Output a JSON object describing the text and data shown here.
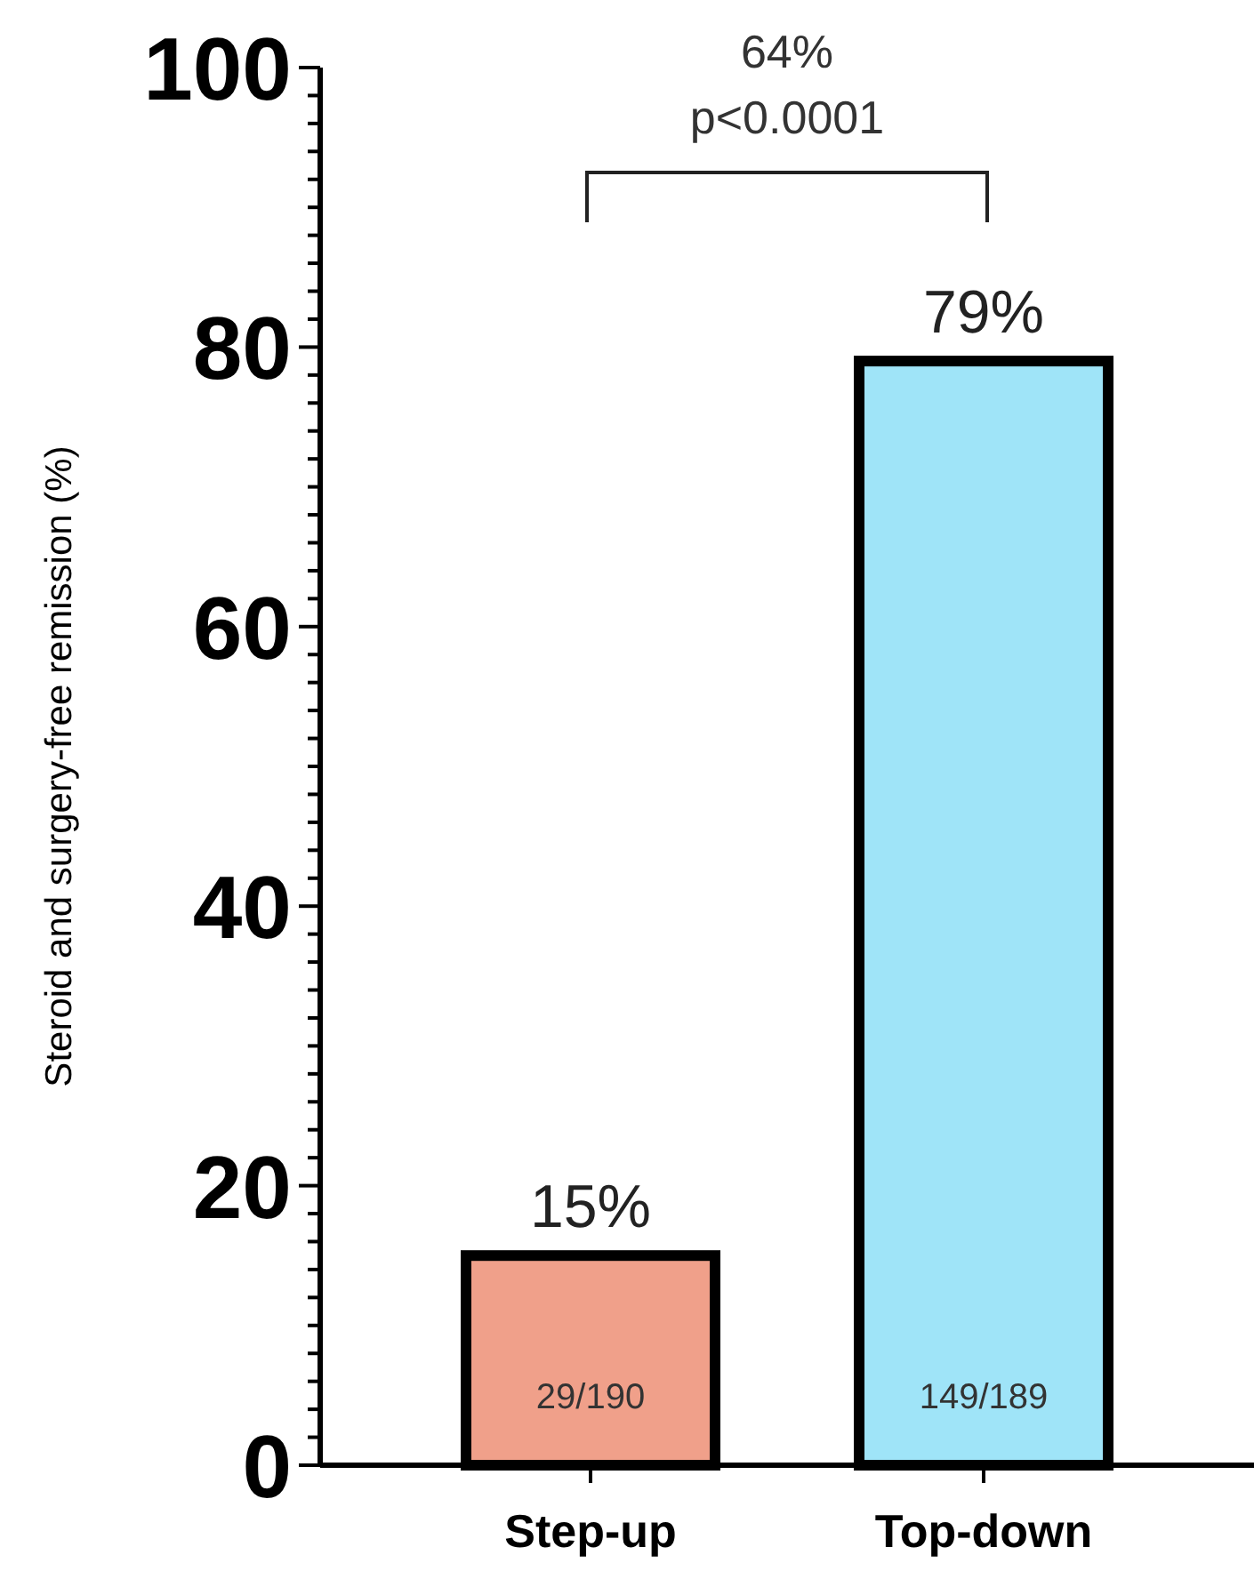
{
  "chart_data": {
    "type": "bar",
    "ylabel": "Steroid and surgery-free remission (%)",
    "categories": [
      "Step-up",
      "Top-down"
    ],
    "values": [
      15,
      79
    ],
    "colors": [
      "#f0a08a",
      "#9fe4f8"
    ],
    "value_labels": [
      "15%",
      "79%"
    ],
    "ylim": [
      0,
      100
    ],
    "yticks": [
      0,
      {
        "value": 2,
        "label": null
      },
      {
        "value": 4,
        "label": null
      },
      {
        "value": 6,
        "label": null
      },
      {
        "value": 8,
        "label": null
      },
      {
        "value": 10,
        "label": null
      },
      {
        "value": 12,
        "label": null
      },
      {
        "value": 14,
        "label": null
      },
      {
        "value": 16,
        "label": null
      },
      {
        "value": 18,
        "label": null
      },
      20,
      {
        "value": 22,
        "label": null
      },
      {
        "value": 24,
        "label": null
      },
      {
        "value": 26,
        "label": null
      },
      {
        "value": 28,
        "label": null
      },
      {
        "value": 30,
        "label": null
      },
      {
        "value": 32,
        "label": null
      },
      {
        "value": 34,
        "label": null
      },
      {
        "value": 36,
        "label": null
      },
      {
        "value": 38,
        "label": null
      },
      40,
      {
        "value": 42,
        "label": null
      },
      {
        "value": 44,
        "label": null
      },
      {
        "value": 46,
        "label": null
      },
      {
        "value": 48,
        "label": null
      },
      {
        "value": 50,
        "label": null
      },
      {
        "value": 52,
        "label": null
      },
      {
        "value": 54,
        "label": null
      },
      {
        "value": 56,
        "label": null
      },
      {
        "value": 58,
        "label": null
      },
      60,
      {
        "value": 62,
        "label": null
      },
      {
        "value": 64,
        "label": null
      },
      {
        "value": 66,
        "label": null
      },
      {
        "value": 68,
        "label": null
      },
      {
        "value": 70,
        "label": null
      },
      {
        "value": 72,
        "label": null
      },
      {
        "value": 74,
        "label": null
      },
      {
        "value": 76,
        "label": null
      },
      {
        "value": 78,
        "label": null
      },
      80,
      {
        "value": 82,
        "label": null
      },
      {
        "value": 84,
        "label": null
      },
      {
        "value": 86,
        "label": null
      },
      {
        "value": 88,
        "label": null
      },
      {
        "value": 90,
        "label": null
      },
      {
        "value": 92,
        "label": null
      },
      {
        "value": 94,
        "label": null
      },
      {
        "value": 96,
        "label": null
      },
      {
        "value": 98,
        "label": null
      },
      100
    ],
    "annotations": [
      "29/190",
      "149/189",
      "64%",
      "p<0.0001"
    ]
  }
}
